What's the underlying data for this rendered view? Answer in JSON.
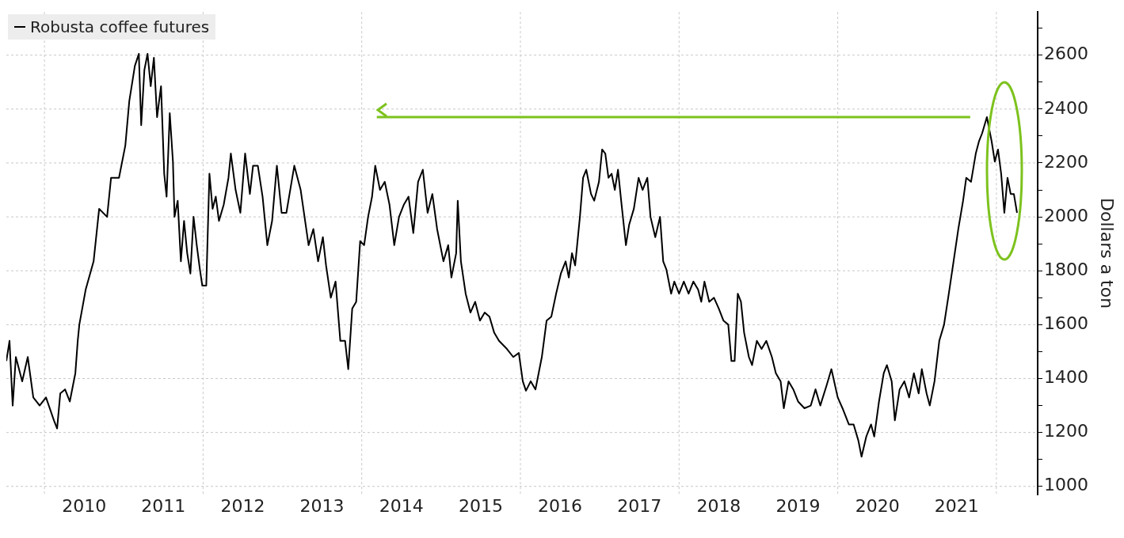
{
  "chart_data": {
    "type": "line",
    "ylabel": "Dollars a ton",
    "legend": "top left",
    "grid": true,
    "xlim": [
      2009.52,
      2022.52
    ],
    "xticks": [
      {
        "value": 2010,
        "label": null
      },
      {
        "value": 2010.5,
        "label": "2010"
      },
      {
        "value": 2011.5,
        "label": "2011"
      },
      {
        "value": 2012,
        "label": null
      },
      {
        "value": 2012.5,
        "label": "2012"
      },
      {
        "value": 2013.5,
        "label": "2013"
      },
      {
        "value": 2014,
        "label": null
      },
      {
        "value": 2014.5,
        "label": "2014"
      },
      {
        "value": 2015.5,
        "label": "2015"
      },
      {
        "value": 2016,
        "label": null
      },
      {
        "value": 2016.5,
        "label": "2016"
      },
      {
        "value": 2017.5,
        "label": "2017"
      },
      {
        "value": 2018,
        "label": null
      },
      {
        "value": 2018.5,
        "label": "2018"
      },
      {
        "value": 2019.5,
        "label": "2019"
      },
      {
        "value": 2020,
        "label": null
      },
      {
        "value": 2020.5,
        "label": "2020"
      },
      {
        "value": 2021.5,
        "label": "2021"
      },
      {
        "value": 2022,
        "label": null
      }
    ],
    "ylim": [
      970,
      2760
    ],
    "yticks": [
      1000,
      {
        "value": 1100,
        "label": null
      },
      1200,
      {
        "value": 1300,
        "label": null
      },
      1400,
      {
        "value": 1500,
        "label": null
      },
      1600,
      {
        "value": 1700,
        "label": null
      },
      1800,
      {
        "value": 1900,
        "label": null
      },
      2000,
      {
        "value": 2100,
        "label": null
      },
      2200,
      {
        "value": 2300,
        "label": null
      },
      2400,
      {
        "value": 2500,
        "label": null
      },
      2600,
      {
        "value": 2700,
        "label": null
      }
    ],
    "series": [
      {
        "name": "Robusta coffee futures",
        "color": "#000000",
        "x": [
          2009.52,
          2009.56,
          2009.6,
          2009.64,
          2009.72,
          2009.79,
          2009.86,
          2009.94,
          2010.02,
          2010.12,
          2010.16,
          2010.2,
          2010.26,
          2010.32,
          2010.39,
          2010.42,
          2010.44,
          2010.52,
          2010.62,
          2010.69,
          2010.79,
          2010.84,
          2010.94,
          2011.02,
          2011.07,
          2011.14,
          2011.19,
          2011.22,
          2011.26,
          2011.3,
          2011.34,
          2011.38,
          2011.42,
          2011.47,
          2011.51,
          2011.54,
          2011.58,
          2011.62,
          2011.64,
          2011.68,
          2011.72,
          2011.76,
          2011.8,
          2011.84,
          2011.88,
          2011.92,
          2011.96,
          2011.99,
          2012.04,
          2012.08,
          2012.12,
          2012.16,
          2012.2,
          2012.26,
          2012.32,
          2012.35,
          2012.41,
          2012.47,
          2012.53,
          2012.59,
          2012.63,
          2012.69,
          2012.75,
          2012.81,
          2012.87,
          2012.93,
          2012.99,
          2013.05,
          2013.15,
          2013.23,
          2013.33,
          2013.39,
          2013.45,
          2013.51,
          2013.55,
          2013.61,
          2013.67,
          2013.73,
          2013.79,
          2013.83,
          2013.88,
          2013.93,
          2013.98,
          2014.03,
          2014.08,
          2014.13,
          2014.17,
          2014.23,
          2014.29,
          2014.35,
          2014.41,
          2014.47,
          2014.53,
          2014.59,
          2014.65,
          2014.71,
          2014.77,
          2014.83,
          2014.89,
          2014.95,
          2015.03,
          2015.09,
          2015.13,
          2015.19,
          2015.21,
          2015.25,
          2015.31,
          2015.37,
          2015.43,
          2015.49,
          2015.55,
          2015.61,
          2015.67,
          2015.73,
          2015.83,
          2015.91,
          2015.98,
          2016.03,
          2016.07,
          2016.13,
          2016.19,
          2016.23,
          2016.27,
          2016.33,
          2016.39,
          2016.45,
          2016.51,
          2016.57,
          2016.61,
          2016.65,
          2016.69,
          2016.75,
          2016.79,
          2016.83,
          2016.89,
          2016.93,
          2016.99,
          2017.03,
          2017.07,
          2017.11,
          2017.15,
          2017.19,
          2017.23,
          2017.27,
          2017.33,
          2017.37,
          2017.43,
          2017.49,
          2017.54,
          2017.6,
          2017.64,
          2017.7,
          2017.76,
          2017.8,
          2017.84,
          2017.9,
          2017.94,
          2018.0,
          2018.06,
          2018.12,
          2018.18,
          2018.24,
          2018.28,
          2018.32,
          2018.38,
          2018.44,
          2018.5,
          2018.56,
          2018.62,
          2018.66,
          2018.7,
          2018.74,
          2018.78,
          2018.82,
          2018.88,
          2018.92,
          2018.98,
          2019.04,
          2019.1,
          2019.17,
          2019.22,
          2019.28,
          2019.32,
          2019.38,
          2019.44,
          2019.5,
          2019.58,
          2019.66,
          2019.72,
          2019.78,
          2019.86,
          2019.92,
          2020.0,
          2020.06,
          2020.14,
          2020.2,
          2020.26,
          2020.3,
          2020.36,
          2020.42,
          2020.46,
          2020.52,
          2020.58,
          2020.62,
          2020.68,
          2020.72,
          2020.78,
          2020.84,
          2020.9,
          2020.96,
          2021.02,
          2021.06,
          2021.12,
          2021.16,
          2021.22,
          2021.28,
          2021.34,
          2021.4,
          2021.46,
          2021.52,
          2021.58,
          2021.62,
          2021.68,
          2021.74,
          2021.78,
          2021.82,
          2021.88,
          2021.94,
          2021.98,
          2022.02,
          2022.06,
          2022.1,
          2022.14,
          2022.18,
          2022.22,
          2022.26
        ],
        "values": [
          1465,
          1540,
          1300,
          1480,
          1390,
          1480,
          1330,
          1300,
          1330,
          1245,
          1215,
          1345,
          1360,
          1315,
          1420,
          1540,
          1600,
          1730,
          1835,
          2030,
          2000,
          2145,
          2145,
          2265,
          2430,
          2560,
          2605,
          2340,
          2545,
          2605,
          2485,
          2590,
          2370,
          2485,
          2160,
          2075,
          2385,
          2205,
          2000,
          2060,
          1835,
          1985,
          1865,
          1790,
          2000,
          1895,
          1805,
          1745,
          1745,
          2160,
          2030,
          2075,
          1985,
          2045,
          2145,
          2235,
          2100,
          2015,
          2235,
          2085,
          2190,
          2190,
          2075,
          1895,
          1985,
          2190,
          2015,
          2015,
          2190,
          2100,
          1895,
          1955,
          1835,
          1925,
          1820,
          1700,
          1760,
          1540,
          1540,
          1435,
          1660,
          1685,
          1910,
          1895,
          2000,
          2075,
          2190,
          2100,
          2130,
          2045,
          1895,
          2000,
          2045,
          2075,
          1940,
          2130,
          2175,
          2015,
          2085,
          1955,
          1835,
          1895,
          1775,
          1865,
          2060,
          1835,
          1715,
          1645,
          1685,
          1615,
          1645,
          1630,
          1570,
          1540,
          1510,
          1480,
          1495,
          1390,
          1355,
          1390,
          1360,
          1420,
          1480,
          1615,
          1630,
          1715,
          1790,
          1835,
          1775,
          1865,
          1820,
          2000,
          2145,
          2175,
          2085,
          2060,
          2130,
          2250,
          2235,
          2145,
          2160,
          2100,
          2175,
          2060,
          1895,
          1970,
          2030,
          2145,
          2100,
          2145,
          2000,
          1925,
          2000,
          1835,
          1805,
          1715,
          1760,
          1715,
          1760,
          1715,
          1760,
          1730,
          1685,
          1760,
          1685,
          1700,
          1660,
          1615,
          1600,
          1465,
          1465,
          1715,
          1685,
          1570,
          1480,
          1450,
          1540,
          1510,
          1540,
          1480,
          1420,
          1390,
          1290,
          1390,
          1360,
          1315,
          1290,
          1300,
          1360,
          1300,
          1375,
          1435,
          1330,
          1290,
          1230,
          1230,
          1170,
          1110,
          1185,
          1230,
          1185,
          1315,
          1420,
          1450,
          1390,
          1245,
          1360,
          1390,
          1330,
          1420,
          1345,
          1435,
          1345,
          1300,
          1390,
          1540,
          1600,
          1715,
          1835,
          1955,
          2060,
          2145,
          2130,
          2235,
          2280,
          2310,
          2370,
          2280,
          2205,
          2250,
          2160,
          2015,
          2145,
          2085,
          2085,
          2015
        ]
      },
      {
        "type": "line",
        "color": "#7dc21e",
        "x": [
          2014.19,
          2021.67
        ],
        "values": [
          2370,
          2370
        ]
      }
    ]
  }
}
